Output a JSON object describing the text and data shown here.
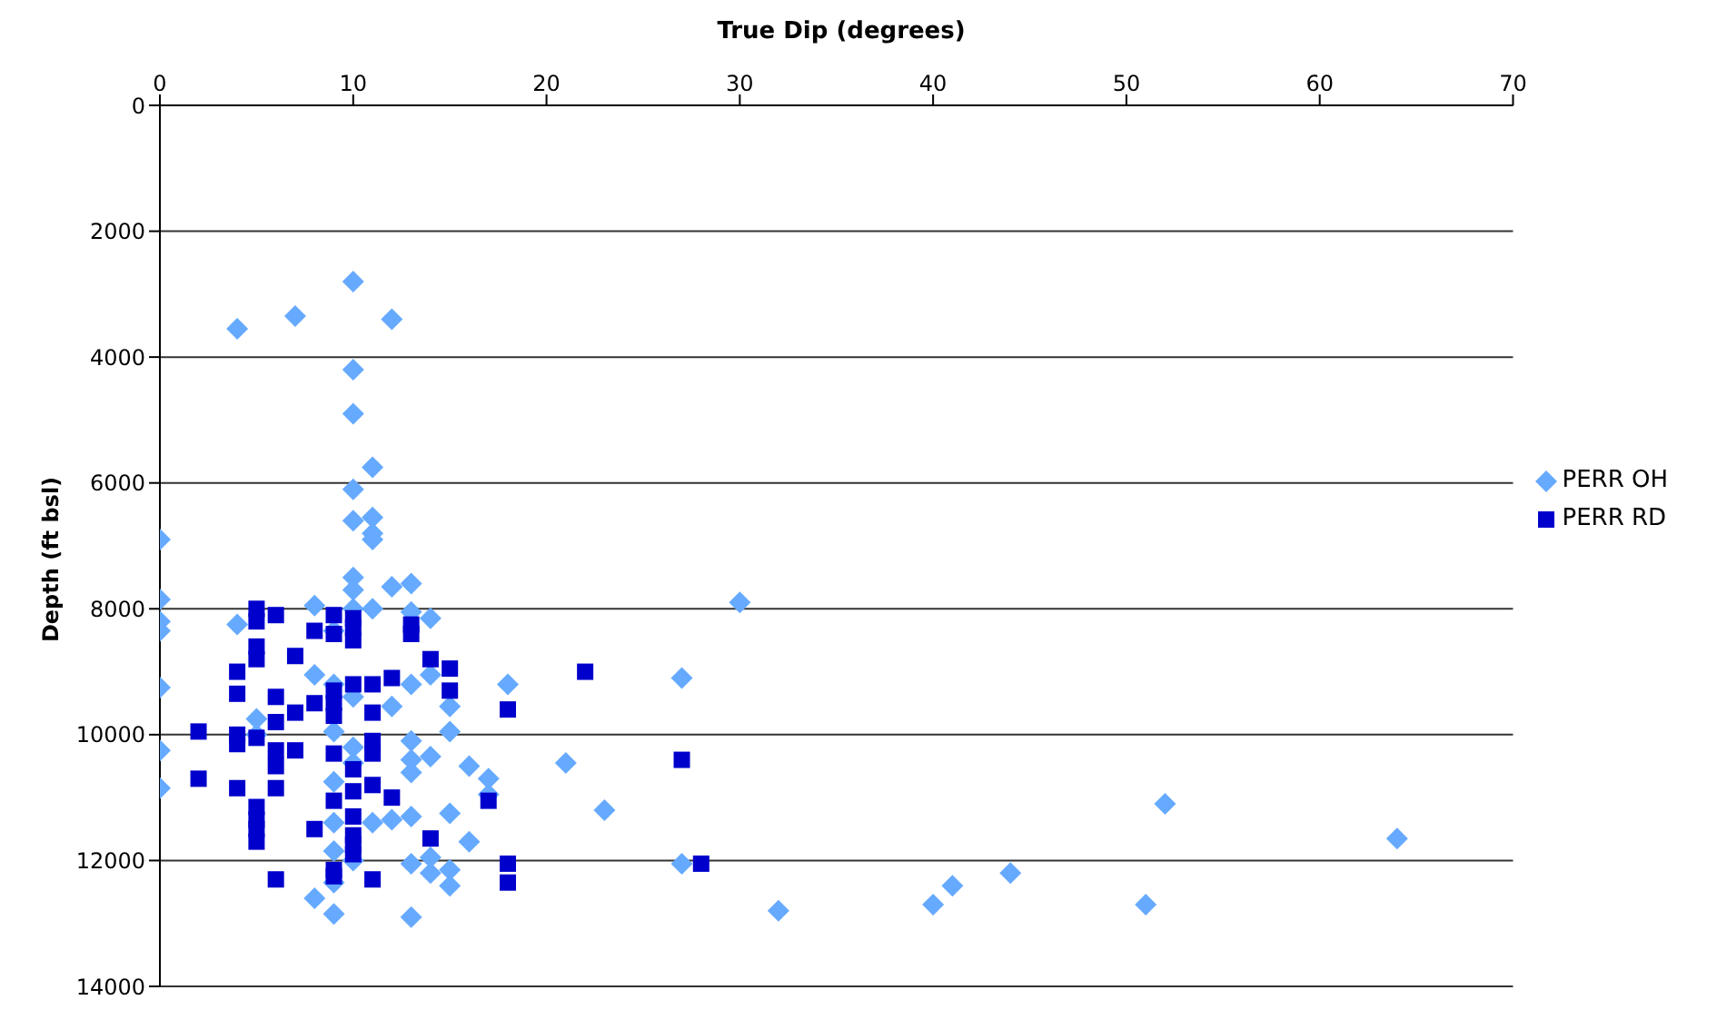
{
  "chart_data": {
    "type": "scatter",
    "xlabel": "True Dip (degrees)",
    "ylabel": "Depth (ft bsl)",
    "xlim": [
      0,
      70
    ],
    "xticks": [
      0,
      10,
      20,
      30,
      40,
      50,
      60,
      70
    ],
    "ylim": [
      14000,
      0
    ],
    "yticks": [
      0,
      2000,
      4000,
      6000,
      8000,
      10000,
      12000,
      14000
    ],
    "grid": "y",
    "legend": "right",
    "series": [
      {
        "name": "PERR OH",
        "color": "#66aaff",
        "marker": "diamond",
        "x": [
          10,
          4,
          7,
          12,
          10,
          10,
          11,
          10,
          10,
          11,
          11,
          11,
          0,
          0,
          10,
          10,
          12,
          13,
          8,
          0,
          0,
          4,
          10,
          11,
          13,
          14,
          9,
          30,
          0,
          27,
          18,
          13,
          14,
          15,
          12,
          8,
          9,
          10,
          5,
          5,
          9,
          15,
          14,
          13,
          0,
          10,
          10,
          16,
          17,
          21,
          13,
          17,
          0,
          9,
          12,
          11,
          13,
          15,
          23,
          52,
          9,
          16,
          64,
          9,
          10,
          13,
          14,
          15,
          27,
          15,
          9,
          8,
          9,
          13,
          32,
          40,
          41,
          44,
          51,
          14,
          13
        ],
        "values": [
          2800,
          3550,
          3350,
          3400,
          4200,
          4900,
          5750,
          6100,
          6600,
          6550,
          6800,
          6900,
          6900,
          7850,
          7500,
          7700,
          7650,
          7600,
          7950,
          8200,
          8350,
          8250,
          8000,
          8000,
          8050,
          8150,
          8350,
          7900,
          9250,
          9100,
          9200,
          9200,
          9050,
          9550,
          9550,
          9050,
          9200,
          9400,
          9750,
          10000,
          9950,
          9950,
          10350,
          10400,
          10250,
          10200,
          10450,
          10500,
          10700,
          10450,
          10600,
          10950,
          10850,
          10750,
          11350,
          11400,
          11300,
          11250,
          11200,
          11100,
          11400,
          11700,
          11650,
          11850,
          12000,
          12050,
          12200,
          12150,
          12050,
          12400,
          12350,
          12600,
          12850,
          12900,
          12800,
          12700,
          12400,
          12200,
          12700,
          11950,
          10100
        ]
      },
      {
        "name": "PERR RD",
        "color": "#0000cc",
        "marker": "square",
        "x": [
          5,
          5,
          6,
          9,
          10,
          10,
          10,
          9,
          8,
          7,
          13,
          13,
          14,
          15,
          15,
          18,
          22,
          4,
          4,
          5,
          5,
          6,
          9,
          9,
          9,
          10,
          11,
          12,
          11,
          8,
          6,
          7,
          4,
          4,
          2,
          5,
          6,
          7,
          9,
          11,
          11,
          12,
          10,
          10,
          11,
          6,
          6,
          4,
          2,
          5,
          5,
          5,
          5,
          8,
          9,
          10,
          10,
          10,
          14,
          17,
          27,
          28,
          18,
          18,
          9,
          6,
          11,
          9,
          10
        ],
        "values": [
          8000,
          8200,
          8100,
          8100,
          8150,
          8300,
          8500,
          8400,
          8350,
          8750,
          8250,
          8400,
          8800,
          8950,
          9300,
          9600,
          9000,
          9000,
          9350,
          8800,
          8600,
          9400,
          9300,
          9500,
          9700,
          9200,
          9200,
          9100,
          9650,
          9500,
          9800,
          9650,
          10000,
          10150,
          9950,
          10050,
          10250,
          10250,
          10300,
          10100,
          10300,
          11000,
          10550,
          10900,
          10800,
          10500,
          10850,
          10850,
          10700,
          11150,
          11350,
          11500,
          11700,
          11500,
          11050,
          11300,
          11600,
          11750,
          11650,
          11050,
          10400,
          12050,
          12050,
          12350,
          12250,
          12300,
          12300,
          12150,
          11900
        ]
      }
    ]
  }
}
